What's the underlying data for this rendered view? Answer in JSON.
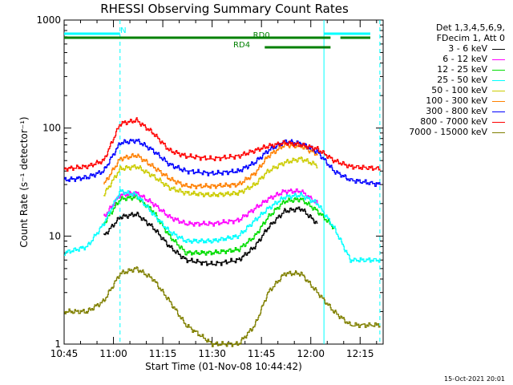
{
  "chart_data": {
    "type": "line",
    "title": "RHESSI Observing Summary Count Rates",
    "xlabel": "Start Time (01-Nov-08 10:44:42)",
    "ylabel": "Count Rate (s⁻¹ detector⁻¹)",
    "y_scale": "log",
    "ylim": [
      1,
      1000
    ],
    "xlim": [
      "10:45",
      "12:22"
    ],
    "x_ticks": [
      "10:45",
      "11:00",
      "11:15",
      "11:30",
      "11:45",
      "12:00",
      "12:15"
    ],
    "y_ticks": [
      "1",
      "10",
      "100",
      "1000"
    ],
    "x": [
      "10:45",
      "10:52",
      "10:57",
      "11:02",
      "11:07",
      "11:12",
      "11:17",
      "11:22",
      "11:30",
      "11:38",
      "11:43",
      "11:47",
      "11:52",
      "11:57",
      "12:02",
      "12:07",
      "12:12",
      "12:21"
    ],
    "series": [
      {
        "name": "3 - 6 keV",
        "color": "#000000",
        "values": [
          null,
          null,
          10,
          15,
          16,
          12,
          8,
          6,
          5.5,
          6,
          8,
          12,
          17,
          18,
          13,
          null,
          null,
          null
        ]
      },
      {
        "name": "6 - 12 keV",
        "color": "#ff00ff",
        "values": [
          null,
          null,
          15,
          24,
          25,
          20,
          15,
          13,
          13,
          14,
          18,
          22,
          26,
          26,
          20,
          null,
          null,
          null
        ]
      },
      {
        "name": "12 - 25 keV",
        "color": "#00dd00",
        "values": [
          null,
          null,
          13,
          22,
          23,
          17,
          10,
          7,
          7,
          7.5,
          10,
          15,
          21,
          22,
          17,
          12,
          null,
          null
        ]
      },
      {
        "name": "25 - 50 keV",
        "color": "#00ffff",
        "values": [
          7,
          8,
          13,
          26,
          24,
          16,
          11,
          9,
          9,
          10,
          14,
          18,
          23,
          24,
          20,
          12,
          6,
          6
        ]
      },
      {
        "name": "50 - 100 keV",
        "color": "#cccc00",
        "values": [
          null,
          null,
          24,
          42,
          44,
          36,
          28,
          25,
          24,
          25,
          30,
          40,
          48,
          52,
          45,
          null,
          null,
          null
        ]
      },
      {
        "name": "100 - 300 keV",
        "color": "#ff8000",
        "values": [
          null,
          null,
          30,
          52,
          56,
          44,
          34,
          29,
          29,
          30,
          38,
          55,
          70,
          68,
          57,
          null,
          null,
          null
        ]
      },
      {
        "name": "300 - 800 keV",
        "color": "#0000ff",
        "values": [
          33,
          35,
          40,
          73,
          77,
          62,
          46,
          40,
          38,
          40,
          48,
          62,
          75,
          72,
          60,
          40,
          33,
          30
        ]
      },
      {
        "name": "800 - 7000 keV",
        "color": "#ff0000",
        "values": [
          42,
          44,
          50,
          110,
          118,
          90,
          62,
          55,
          52,
          55,
          62,
          68,
          73,
          70,
          64,
          50,
          44,
          42
        ]
      },
      {
        "name": "7000 - 15000 keV",
        "color": "#808000",
        "values": [
          2,
          2,
          2.5,
          4.5,
          5,
          4,
          2.5,
          1.5,
          1,
          1,
          1.5,
          3,
          4.5,
          4.5,
          3,
          2,
          1.5,
          1.5
        ]
      }
    ],
    "annotations": [
      {
        "text": "N"
      },
      {
        "text": "RD0"
      },
      {
        "text": "RD4"
      }
    ],
    "grid": false,
    "legend_placement": "right"
  },
  "legend": {
    "header_line1": "Det 1,3,4,5,6,9,",
    "header_line2": "FDecim 1, Att 0"
  },
  "footer": {
    "timestamp": "15-Oct-2021 20:01"
  },
  "colors": {
    "night": "#00ffff",
    "rd0": "#008000",
    "rd4": "#008000"
  }
}
